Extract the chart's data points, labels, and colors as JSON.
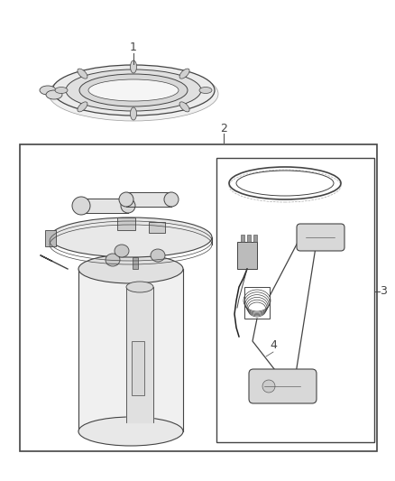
{
  "bg_color": "#ffffff",
  "lc": "#444444",
  "lc_dark": "#222222",
  "lc_light": "#888888",
  "label1": "1",
  "label2": "2",
  "label3": "3",
  "label4": "4",
  "figsize": [
    4.38,
    5.33
  ],
  "dpi": 100
}
